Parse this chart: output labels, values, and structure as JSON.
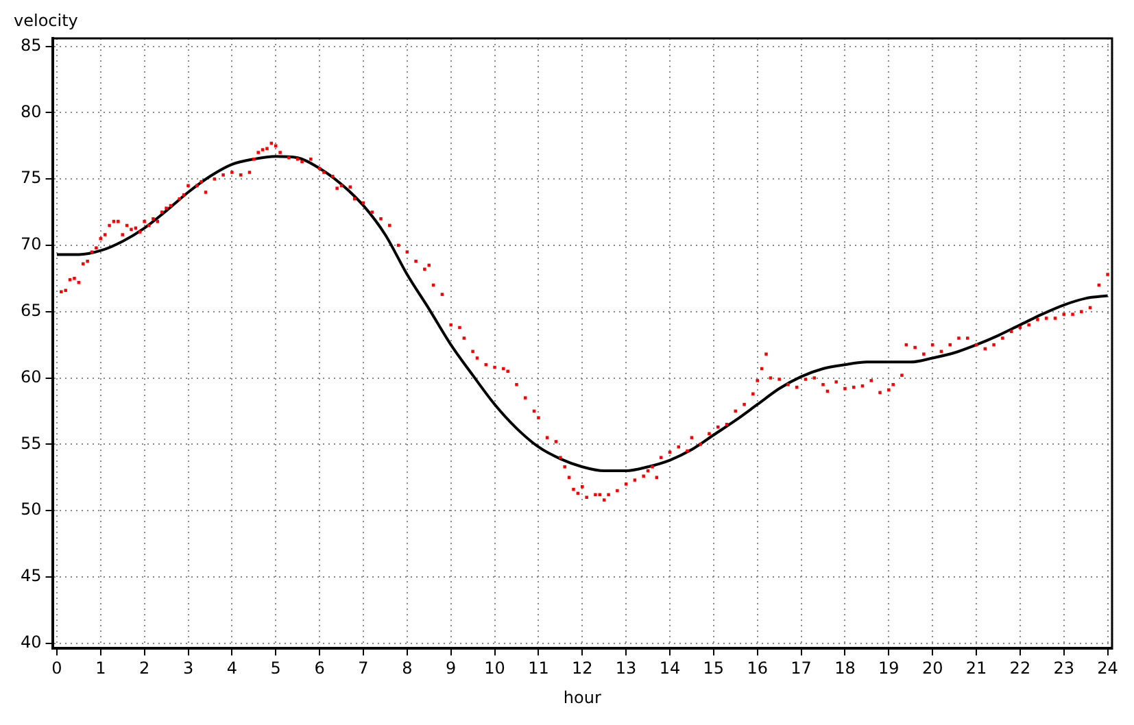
{
  "chart_data": {
    "type": "scatter",
    "xlabel": "hour",
    "ylabel": "velocity",
    "xlim": [
      -0.1,
      24.1
    ],
    "xticks": [
      0,
      1,
      2,
      3,
      4,
      5,
      6,
      7,
      8,
      9,
      10,
      11,
      12,
      13,
      14,
      15,
      16,
      17,
      18,
      19,
      20,
      21,
      22,
      23,
      24
    ],
    "ylim": [
      39.6,
      85.6
    ],
    "yticks": [
      40,
      45,
      50,
      55,
      60,
      65,
      70,
      75,
      80,
      85
    ],
    "grid": true,
    "legend": false,
    "series": [
      {
        "marker": "square",
        "color": "#ff0000",
        "x": [
          0.1,
          0.2,
          0.3,
          0.4,
          0.5,
          0.6,
          0.7,
          0.8,
          0.9,
          1.0,
          1.1,
          1.2,
          1.3,
          1.4,
          1.5,
          1.6,
          1.7,
          1.8,
          1.9,
          2.0,
          2.1,
          2.2,
          2.3,
          2.4,
          2.5,
          2.6,
          2.8,
          2.9,
          3.0,
          3.2,
          3.3,
          3.4,
          3.6,
          3.8,
          4.0,
          4.2,
          4.4,
          4.5,
          4.6,
          4.7,
          4.8,
          4.9,
          5.0,
          5.1,
          5.3,
          5.5,
          5.6,
          5.8,
          6.0,
          6.1,
          6.3,
          6.4,
          6.5,
          6.7,
          6.8,
          7.0,
          7.2,
          7.4,
          7.6,
          7.8,
          8.0,
          8.2,
          8.4,
          8.5,
          8.6,
          8.8,
          9.0,
          9.2,
          9.3,
          9.5,
          9.6,
          9.8,
          10.0,
          10.2,
          10.3,
          10.5,
          10.7,
          10.9,
          11.0,
          11.2,
          11.4,
          11.5,
          11.6,
          11.7,
          11.8,
          11.9,
          12.0,
          12.1,
          12.3,
          12.4,
          12.5,
          12.6,
          12.8,
          13.0,
          13.2,
          13.4,
          13.5,
          13.6,
          13.7,
          13.8,
          14.0,
          14.2,
          14.4,
          14.5,
          14.7,
          14.9,
          15.1,
          15.3,
          15.5,
          15.7,
          15.9,
          16.0,
          16.1,
          16.2,
          16.3,
          16.5,
          16.7,
          16.9,
          17.1,
          17.3,
          17.5,
          17.6,
          17.8,
          18.0,
          18.2,
          18.4,
          18.6,
          18.8,
          19.0,
          19.1,
          19.3,
          19.4,
          19.6,
          19.8,
          20.0,
          20.2,
          20.4,
          20.6,
          20.8,
          21.0,
          21.2,
          21.4,
          21.6,
          21.8,
          22.0,
          22.2,
          22.4,
          22.6,
          22.8,
          23.0,
          23.2,
          23.4,
          23.6,
          23.8,
          24.0
        ],
        "values": [
          66.5,
          66.6,
          67.4,
          67.5,
          67.2,
          68.6,
          68.8,
          69.5,
          69.8,
          70.5,
          70.8,
          71.5,
          71.8,
          71.8,
          70.8,
          71.5,
          71.2,
          71.3,
          71.0,
          71.8,
          71.5,
          72.0,
          71.8,
          72.5,
          72.8,
          73.0,
          73.5,
          73.8,
          74.5,
          74.5,
          74.8,
          74.0,
          75.0,
          75.3,
          75.5,
          75.3,
          75.5,
          76.5,
          77.0,
          77.2,
          77.3,
          77.7,
          77.5,
          77.0,
          76.6,
          76.5,
          76.3,
          76.5,
          75.8,
          75.5,
          75.2,
          74.3,
          74.5,
          74.4,
          73.5,
          73.2,
          72.5,
          72.0,
          71.5,
          70.0,
          69.5,
          68.8,
          68.2,
          68.5,
          67.0,
          66.3,
          64.0,
          63.8,
          63.0,
          62.0,
          61.5,
          61.0,
          60.8,
          60.7,
          60.5,
          59.5,
          58.5,
          57.5,
          57.0,
          55.5,
          55.2,
          54.0,
          53.3,
          52.5,
          51.6,
          51.3,
          51.8,
          51.0,
          51.2,
          51.2,
          50.8,
          51.2,
          51.5,
          52.0,
          52.3,
          52.6,
          53.0,
          53.3,
          52.5,
          54.0,
          54.4,
          54.8,
          54.5,
          55.5,
          55.0,
          55.8,
          56.3,
          56.5,
          57.5,
          58.0,
          58.8,
          59.8,
          60.7,
          61.8,
          60.0,
          59.9,
          59.5,
          59.3,
          59.9,
          60.0,
          59.5,
          59.0,
          59.7,
          59.2,
          59.3,
          59.4,
          59.8,
          58.9,
          59.1,
          59.5,
          60.2,
          62.5,
          62.3,
          61.8,
          62.5,
          62.0,
          62.5,
          63.0,
          63.0,
          62.5,
          62.2,
          62.5,
          63.0,
          63.5,
          63.8,
          64.0,
          64.4,
          64.5,
          64.5,
          64.8,
          64.8,
          65.0,
          65.3,
          67.0,
          67.8
        ]
      },
      {
        "type": "line",
        "marker": "none",
        "line_style": "solid",
        "color": "#000000",
        "x": [
          0,
          0.5,
          1,
          1.5,
          2,
          2.5,
          3,
          3.5,
          4,
          4.5,
          5,
          5.5,
          6,
          6.5,
          7,
          7.5,
          8,
          8.5,
          9,
          9.5,
          10,
          10.5,
          11,
          11.5,
          12,
          12.5,
          13,
          13.5,
          14,
          14.5,
          15,
          15.5,
          16,
          16.5,
          17,
          17.5,
          18,
          18.5,
          19,
          19.5,
          20,
          20.5,
          21,
          21.5,
          22,
          22.5,
          23,
          23.5,
          24
        ],
        "values": [
          69.3,
          69.3,
          69.6,
          70.3,
          71.3,
          72.6,
          74.0,
          75.2,
          76.1,
          76.5,
          76.7,
          76.6,
          75.8,
          74.6,
          73.0,
          70.8,
          67.8,
          65.2,
          62.5,
          60.2,
          58.0,
          56.2,
          54.8,
          53.9,
          53.3,
          53.0,
          53.0,
          53.3,
          53.8,
          54.6,
          55.7,
          56.8,
          58.0,
          59.2,
          60.1,
          60.7,
          61.0,
          61.2,
          61.2,
          61.2,
          61.5,
          61.9,
          62.5,
          63.2,
          64.0,
          64.8,
          65.5,
          66.0,
          66.2
        ]
      }
    ]
  }
}
